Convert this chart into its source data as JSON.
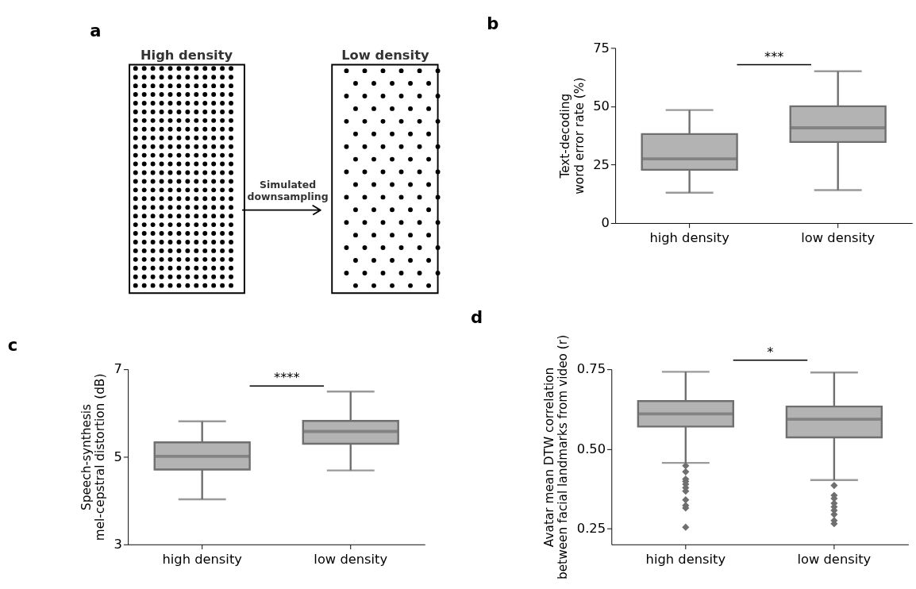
{
  "chart_data": [
    {
      "type": "other",
      "title": "a",
      "annotations": [
        "High density",
        "Low density",
        "Simulated\ndownsampling"
      ]
    },
    {
      "type": "box",
      "title": "b",
      "ylabel": "Text-decoding\nword error rate (%)",
      "categories": [
        "high density",
        "low density"
      ],
      "colors": [
        "#b3b3b3",
        "#b3b3b3"
      ],
      "boxes": [
        {
          "low": 13.0,
          "q1": 22.8,
          "median": 27.5,
          "q3": 38.1,
          "high": 48.4
        },
        {
          "low": 14.1,
          "q1": 34.7,
          "median": 40.8,
          "q3": 50.0,
          "high": 65.0
        }
      ],
      "ylim": [
        0,
        75
      ],
      "yticks": [
        0,
        25,
        50,
        75
      ],
      "grid": false,
      "annotations": [
        "***"
      ]
    },
    {
      "type": "box",
      "title": "c",
      "ylabel": "Speech-synthesis\nmel-cepstral distortion (dB)",
      "categories": [
        "high density",
        "low density"
      ],
      "colors": [
        "#b3b3b3",
        "#b3b3b3"
      ],
      "boxes": [
        {
          "low": 4.03,
          "q1": 4.71,
          "median": 5.01,
          "q3": 5.33,
          "high": 5.81
        },
        {
          "low": 4.69,
          "q1": 5.3,
          "median": 5.58,
          "q3": 5.82,
          "high": 6.49
        }
      ],
      "ylim": [
        3,
        7
      ],
      "yticks": [
        3,
        5,
        7
      ],
      "grid": false,
      "annotations": [
        "****"
      ]
    },
    {
      "type": "box",
      "title": "d",
      "ylabel": "Avatar mean DTW correlation\nbetween facial landmarks from video (r)",
      "categories": [
        "high density",
        "low density"
      ],
      "colors": [
        "#b3b3b3",
        "#b3b3b3"
      ],
      "boxes": [
        {
          "low": 0.456,
          "q1": 0.57,
          "median": 0.61,
          "q3": 0.65,
          "high": 0.742,
          "outliers": [
            0.447,
            0.428,
            0.405,
            0.398,
            0.389,
            0.378,
            0.367,
            0.34,
            0.322,
            0.314,
            0.254
          ]
        },
        {
          "low": 0.402,
          "q1": 0.536,
          "median": 0.593,
          "q3": 0.633,
          "high": 0.74,
          "outliers": [
            0.385,
            0.354,
            0.344,
            0.329,
            0.318,
            0.307,
            0.294,
            0.275,
            0.265
          ]
        }
      ],
      "ylim": [
        0.2,
        0.75
      ],
      "yticks": [
        {
          "value": 0.25,
          "label": "0.25"
        },
        {
          "value": 0.5,
          "label": "0.50"
        },
        {
          "value": 0.75,
          "label": "0.75"
        }
      ],
      "grid": false,
      "annotations": [
        "*"
      ]
    }
  ]
}
